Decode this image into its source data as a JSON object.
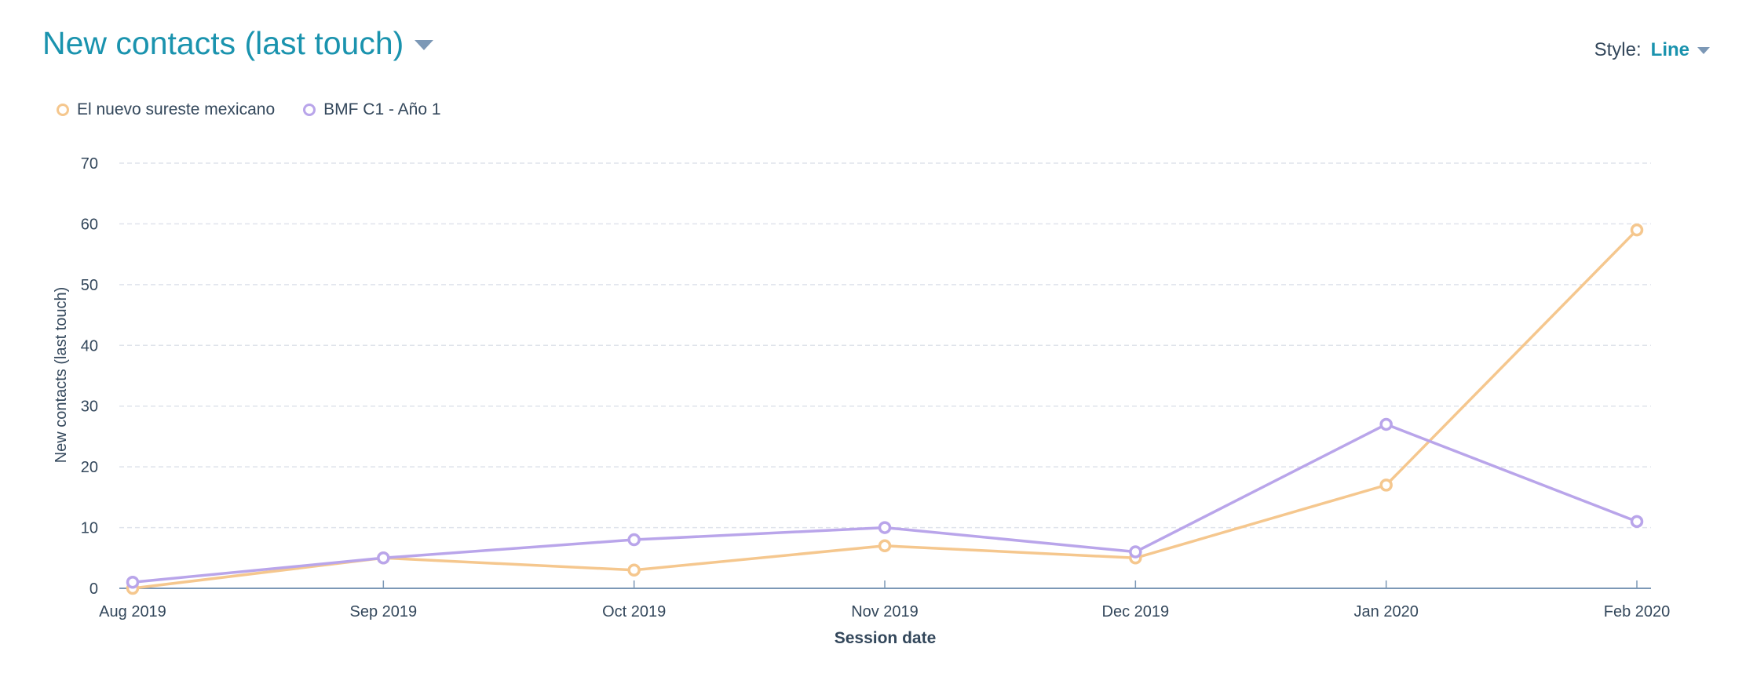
{
  "header": {
    "title": "New contacts (last touch)",
    "style_label": "Style:",
    "style_value": "Line"
  },
  "chart_data": {
    "type": "line",
    "title": "New contacts (last touch)",
    "xlabel": "Session date",
    "ylabel": "New contacts (last touch)",
    "categories": [
      "Aug 2019",
      "Sep 2019",
      "Oct 2019",
      "Nov 2019",
      "Dec 2019",
      "Jan 2020",
      "Feb 2020"
    ],
    "ylim": [
      0,
      70
    ],
    "yticks": [
      0,
      10,
      20,
      30,
      40,
      50,
      60,
      70
    ],
    "grid": true,
    "legend_position": "top-left",
    "series": [
      {
        "name": "El nuevo sureste mexicano",
        "color": "#f5c78e",
        "values": [
          0,
          5,
          3,
          7,
          5,
          17,
          59
        ]
      },
      {
        "name": "BMF C1 - Año 1",
        "color": "#b9a5ea",
        "values": [
          1,
          5,
          8,
          10,
          6,
          27,
          11
        ]
      }
    ]
  }
}
